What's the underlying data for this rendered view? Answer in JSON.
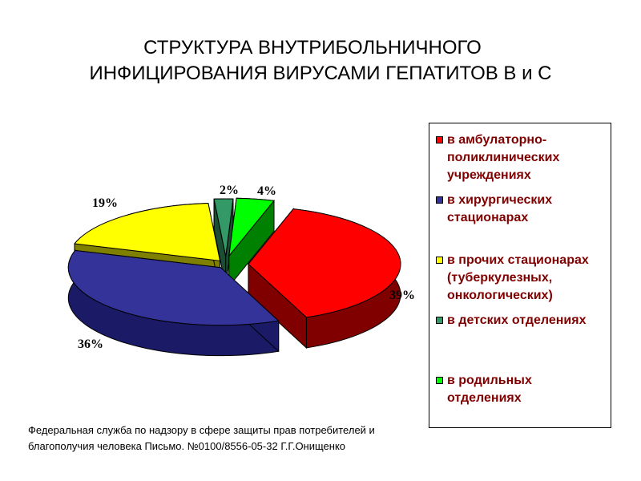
{
  "title": {
    "line1": "СТРУКТУРА ВНУТРИБОЛЬНИЧНОГО",
    "line2": "ИНФИЦИРОВАНИЯ ВИРУСАМИ ГЕПАТИТОВ В и С"
  },
  "chart_data": {
    "type": "pie",
    "title": "СТРУКТУРА ВНУТРИБОЛЬНИЧНОГО ИНФИЦИРОВАНИЯ ВИРУСАМИ ГЕПАТИТОВ В и С",
    "legend_position": "right",
    "slices": [
      {
        "name": "в амбулаторно-поликлинических учреждениях",
        "value": 39,
        "label": "39%",
        "color": "#FF0000",
        "side_color": "#800000"
      },
      {
        "name": "в хирургических стационарах",
        "value": 36,
        "label": "36%",
        "color": "#333399",
        "side_color": "#1A1A66"
      },
      {
        "name": "в прочих стационарах (туберкулезных, онкологических)",
        "value": 19,
        "label": "19%",
        "color": "#FFFF00",
        "side_color": "#808000"
      },
      {
        "name": "в детских отделениях",
        "value": 2,
        "label": "2%",
        "color": "#339966",
        "side_color": "#1A4D33"
      },
      {
        "name": "в родильных отделениях",
        "value": 4,
        "label": "4%",
        "color": "#00FF00",
        "side_color": "#008000"
      }
    ]
  },
  "legend": {
    "items": [
      {
        "line1": "в амбулаторно-",
        "line2": "поликлинических",
        "line3": "учреждениях"
      },
      {
        "line1": "в хирургических",
        "line2": "стационарах"
      },
      {
        "line1": "в прочих стационарах",
        "line2": "(туберкулезных,",
        "line3": "онкологических)"
      },
      {
        "line1": "в детских отделениях"
      },
      {
        "line1": "в родильных",
        "line2": "отделениях"
      }
    ]
  },
  "source": {
    "line1": "Федеральная служба по надзору в сфере защиты прав потребителей и",
    "line2": "благополучия человека Письмо. №0100/8556-05-32  Г.Г.Онищенко"
  }
}
